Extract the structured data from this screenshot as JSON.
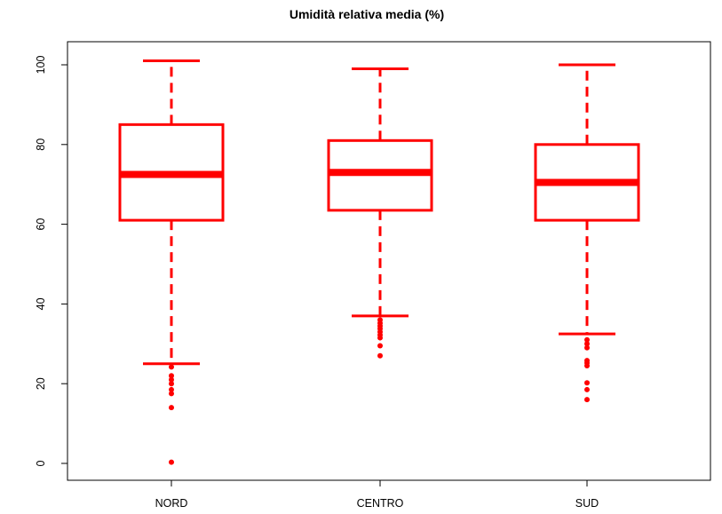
{
  "chart_data": {
    "type": "boxplot",
    "title": "Umidità relativa media (%)",
    "xlabel": "",
    "ylabel": "",
    "ylim": [
      -3,
      104
    ],
    "y_ticks": [
      0,
      20,
      40,
      60,
      80,
      100
    ],
    "y_tick_labels": [
      "0",
      "20",
      "40",
      "60",
      "80",
      "100"
    ],
    "grid": false,
    "color": "#ff0000",
    "categories": [
      "NORD",
      "CENTRO",
      "SUD"
    ],
    "boxes": [
      {
        "category": "NORD",
        "whisker_low": 25,
        "q1": 61,
        "median": 72.5,
        "q3": 85,
        "whisker_high": 101,
        "outliers": [
          24.2,
          22,
          21,
          20,
          18.5,
          17.5,
          14,
          0.3
        ]
      },
      {
        "category": "CENTRO",
        "whisker_low": 37,
        "q1": 63.5,
        "median": 73,
        "q3": 81,
        "whisker_high": 99,
        "outliers": [
          36,
          35.2,
          34.5,
          33.8,
          33,
          32.2,
          31.5,
          29.5,
          27
        ]
      },
      {
        "category": "SUD",
        "whisker_low": 32.5,
        "q1": 61,
        "median": 70.5,
        "q3": 80,
        "whisker_high": 100,
        "outliers": [
          31,
          30,
          29,
          25.8,
          25.2,
          24.5,
          20.2,
          18.5,
          16
        ]
      }
    ]
  }
}
